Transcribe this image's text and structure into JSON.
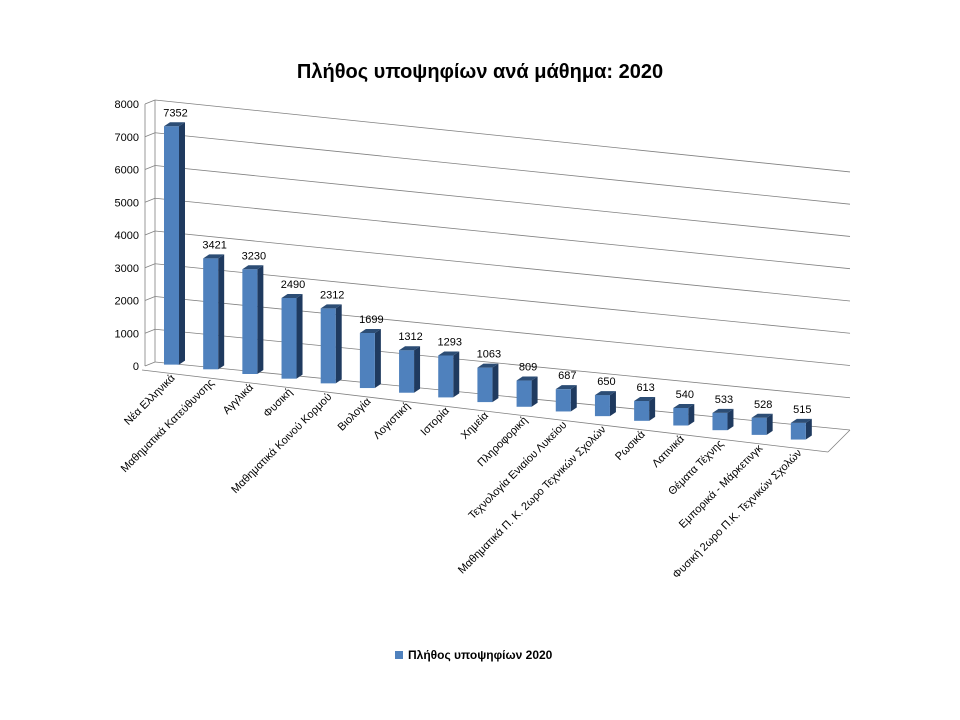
{
  "chart_data": {
    "type": "bar",
    "title": "Πλήθος υποψηφίων ανά μάθημα: 2020",
    "categories": [
      "Νέα Ελληνικά",
      "Μαθηματικά Κατεύθυνσης",
      "Αγγλικά",
      "Φυσική",
      "Μαθηματικά Κοινού Κορμού",
      "Βιολογία",
      "Λογιστική",
      "Ιστορία",
      "Χημεία",
      "Πληροφορική",
      "Τεχνολογία Ενιαίου Λυκείου",
      "Μαθηματικά Π. Κ. 2ωρο Τεχνικών Σχολών",
      "Ρωσικά",
      "Λατινικά",
      "Θέματα Τέχνης",
      "Εμπορικά - Μάρκετινγκ",
      "Φυσική 2ωρο Π.Κ. Τεχνικών Σχολών"
    ],
    "series": [
      {
        "name": "Πλήθος υποψηφίων 2020",
        "values": [
          7352,
          3421,
          3230,
          2490,
          2312,
          1699,
          1312,
          1293,
          1063,
          809,
          687,
          650,
          613,
          540,
          533,
          528,
          515
        ]
      }
    ],
    "ylim": [
      0,
      8000
    ],
    "yticks": [
      "0",
      "1000",
      "2000",
      "3000",
      "4000",
      "5000",
      "6000",
      "7000",
      "8000"
    ],
    "grid": true,
    "legend": "bottom",
    "colors": {
      "bar_front": "#4f81bd",
      "bar_top": "#2c4d75",
      "bar_side": "#1f3a5f",
      "grid": "#808080"
    }
  }
}
